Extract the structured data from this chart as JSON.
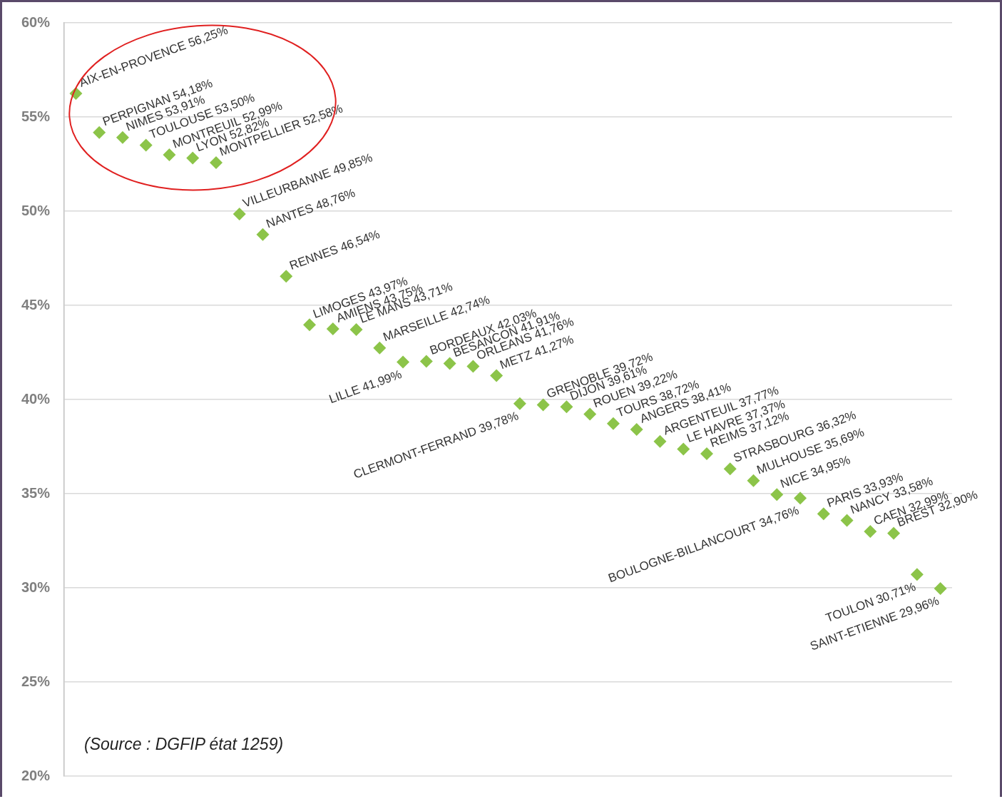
{
  "chart_data": {
    "type": "scatter",
    "categories": [
      null,
      null,
      null,
      null,
      null,
      null,
      null,
      null,
      null,
      null,
      null,
      null,
      null,
      null,
      null,
      null,
      null,
      null,
      null,
      null,
      null,
      null,
      null,
      null,
      null,
      null,
      null,
      null,
      null,
      null,
      null,
      null,
      null,
      null,
      null,
      null,
      null,
      null
    ],
    "series": [
      {
        "color": "#8cc449",
        "values": [
          56.25,
          54.18,
          53.91,
          53.5,
          52.99,
          52.82,
          52.58,
          49.85,
          48.76,
          46.54,
          43.97,
          43.75,
          43.71,
          42.74,
          41.99,
          42.03,
          41.91,
          41.76,
          41.27,
          39.78,
          39.72,
          39.61,
          39.22,
          38.72,
          38.41,
          37.77,
          37.37,
          37.12,
          36.32,
          35.69,
          34.95,
          34.76,
          33.93,
          33.58,
          32.99,
          32.9,
          30.71,
          29.96
        ],
        "value_labels": [
          "AIX-EN-PROVENCE 56,25%",
          "PERPIGNAN 54,18%",
          "NIMES 53,91%",
          "TOULOUSE 53,50%",
          "MONTREUIL 52,99%",
          "LYON 52,82%",
          "MONTPELLIER 52,58%",
          "VILLEURBANNE 49,85%",
          "NANTES 48,76%",
          "RENNES 46,54%",
          "LIMOGES 43,97%",
          "AMIENS 43,75%",
          "LE MANS 43,71%",
          "MARSEILLE 42,74%",
          "LILLE 41,99%",
          "BORDEAUX 42,03%",
          "BESANCON 41,91%",
          "ORLEANS 41,76%",
          "METZ 41,27%",
          "CLERMONT-FERRAND 39,78%",
          "GRENOBLE 39,72%",
          "DIJON 39,61%",
          "ROUEN 39,22%",
          "TOURS 38,72%",
          "ANGERS 38,41%",
          "ARGENTEUIL 37,77%",
          "LE HAVRE 37,37%",
          "REIMS 37,12%",
          "STRASBOURG 36,32%",
          "MULHOUSE 35,69%",
          "NICE 34,95%",
          "BOULOGNE-BILLANCOURT 34,76%",
          "PARIS 33,93%",
          "NANCY 33,58%",
          "CAEN 32,99%",
          "BREST 32,90%",
          "TOULON 30,71%",
          "SAINT-ETIENNE 29,96%"
        ]
      }
    ],
    "ylim": [
      20,
      60
    ],
    "yticks": [
      {
        "value": 20,
        "label": "20%"
      },
      {
        "value": 25,
        "label": "25%"
      },
      {
        "value": 30,
        "label": "30%"
      },
      {
        "value": 35,
        "label": "35%"
      },
      {
        "value": 40,
        "label": "40%"
      },
      {
        "value": 45,
        "label": "45%"
      },
      {
        "value": 50,
        "label": "50%"
      },
      {
        "value": 55,
        "label": "55%"
      },
      {
        "value": 60,
        "label": "60%"
      }
    ],
    "grid": "y",
    "marker": "diamond",
    "tick_labels": "y",
    "annotations": [
      "(Source : DGFIP état 1259)"
    ]
  }
}
